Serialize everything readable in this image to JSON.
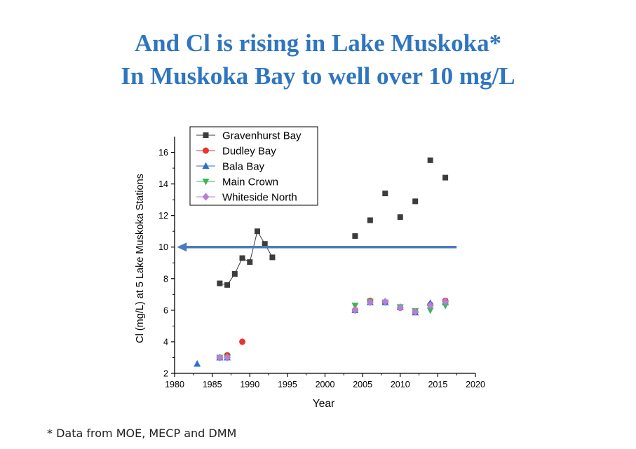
{
  "slide": {
    "title_line1": "And Cl is rising in Lake Muskoka*",
    "title_line2": "In Muskoka Bay to well over 10 mg/L",
    "footnote": "* Data from MOE, MECP and DMM"
  },
  "chart_data": {
    "type": "scatter",
    "xlabel": "Year",
    "ylabel": "Cl (mg/L) at 5 Lake Muskoka Stations",
    "xlim": [
      1980,
      2020
    ],
    "ylim": [
      2,
      17
    ],
    "xticks": [
      1980,
      1985,
      1990,
      1995,
      2000,
      2005,
      2010,
      2015,
      2020
    ],
    "yticks": [
      2,
      4,
      6,
      8,
      10,
      12,
      14,
      16
    ],
    "grid": false,
    "legend_position": "top-left",
    "series": [
      {
        "name": "Gravenhurst Bay",
        "marker": "square",
        "color": "#3c3c3c",
        "connected_segment_years": [
          1986,
          1993
        ],
        "x": [
          1986,
          1987,
          1988,
          1989,
          1990,
          1991,
          1992,
          1993,
          2004,
          2006,
          2008,
          2010,
          2012,
          2014,
          2016
        ],
        "y": [
          7.7,
          7.6,
          8.3,
          9.3,
          9.05,
          11.0,
          10.2,
          9.35,
          10.7,
          11.7,
          13.4,
          11.9,
          12.9,
          15.5,
          14.4
        ]
      },
      {
        "name": "Dudley Bay",
        "marker": "circle",
        "color": "#e8352f",
        "x": [
          1986,
          1987,
          1989,
          2004,
          2006,
          2008,
          2010,
          2012,
          2014,
          2016
        ],
        "y": [
          3.0,
          3.15,
          4.0,
          6.0,
          6.6,
          6.5,
          6.15,
          5.9,
          6.35,
          6.6
        ]
      },
      {
        "name": "Bala Bay",
        "marker": "triangle-up",
        "color": "#2d6fd0",
        "x": [
          1983,
          1986,
          1987,
          2004,
          2006,
          2008,
          2010,
          2012,
          2014,
          2016
        ],
        "y": [
          2.6,
          3.0,
          3.0,
          6.0,
          6.5,
          6.5,
          6.2,
          5.85,
          6.45,
          6.5
        ]
      },
      {
        "name": "Main Crown",
        "marker": "triangle-down",
        "color": "#3cb55a",
        "x": [
          1986,
          1987,
          2004,
          2006,
          2008,
          2010,
          2012,
          2014,
          2016
        ],
        "y": [
          3.0,
          3.0,
          6.3,
          6.55,
          6.5,
          6.2,
          5.95,
          6.0,
          6.3
        ]
      },
      {
        "name": "Whiteside North",
        "marker": "diamond",
        "color": "#b57fd9",
        "x": [
          1986,
          1987,
          2004,
          2006,
          2008,
          2010,
          2012,
          2014,
          2016
        ],
        "y": [
          3.0,
          3.0,
          6.0,
          6.5,
          6.55,
          6.15,
          5.9,
          6.3,
          6.55
        ]
      }
    ],
    "annotations": [
      {
        "type": "arrow",
        "y": 10,
        "x_from": 2017.5,
        "x_to": 1980.3,
        "color": "#4a7bbd"
      }
    ]
  }
}
